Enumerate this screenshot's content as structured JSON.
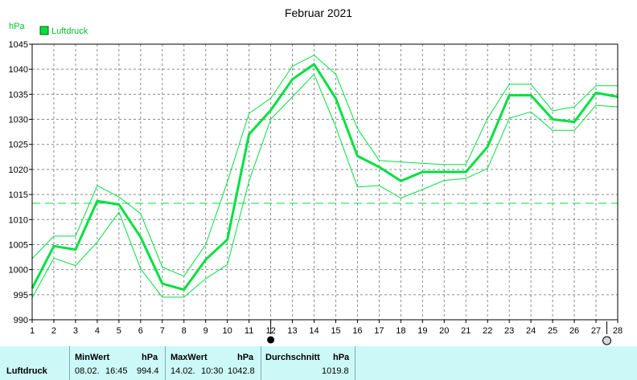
{
  "chart_data": {
    "type": "line",
    "title": "Februar 2021",
    "unit": "hPa",
    "legend": "Luftdruck",
    "x": [
      1,
      2,
      3,
      4,
      5,
      6,
      7,
      8,
      9,
      10,
      11,
      12,
      13,
      14,
      15,
      16,
      17,
      18,
      19,
      20,
      21,
      22,
      23,
      24,
      25,
      26,
      27,
      28
    ],
    "xlim": [
      1,
      28
    ],
    "ylim": [
      990,
      1045
    ],
    "yticks": [
      990,
      995,
      1000,
      1005,
      1010,
      1015,
      1020,
      1025,
      1030,
      1035,
      1040,
      1045
    ],
    "grid": true,
    "series": [
      {
        "name": "Luftdruck",
        "role": "mean",
        "color": "#00e040",
        "values": [
          996.3,
          1004.7,
          1004.0,
          1013.7,
          1013.0,
          1006.5,
          997.2,
          996.0,
          1002.0,
          1006.0,
          1027.0,
          1031.8,
          1038.0,
          1041.0,
          1034.2,
          1022.7,
          1020.5,
          1017.7,
          1019.5,
          1019.5,
          1019.5,
          1024.5,
          1034.8,
          1034.8,
          1030.0,
          1029.5,
          1035.3,
          1034.5
        ]
      },
      {
        "role": "max",
        "color": "#00e040",
        "values": [
          1002.2,
          1006.7,
          1006.7,
          1016.8,
          1014.5,
          1011.2,
          1000.5,
          998.7,
          1005.0,
          1017.5,
          1031.2,
          1034.2,
          1040.6,
          1042.8,
          1039.0,
          1028.2,
          1021.8,
          1021.5,
          1021.2,
          1021.0,
          1021.0,
          1030.2,
          1037.0,
          1037.0,
          1031.7,
          1032.5,
          1036.7,
          1036.7
        ]
      },
      {
        "role": "min",
        "color": "#00e040",
        "values": [
          994.4,
          1002.3,
          1000.8,
          1005.5,
          1011.5,
          1000.2,
          994.5,
          994.5,
          998.2,
          1001.0,
          1017.7,
          1030.0,
          1034.5,
          1039.0,
          1028.5,
          1016.5,
          1016.8,
          1014.3,
          1016.0,
          1017.8,
          1018.2,
          1020.2,
          1030.2,
          1031.5,
          1027.8,
          1027.8,
          1032.8,
          1032.5
        ]
      }
    ],
    "reference_line": {
      "value": 1013.25,
      "style": "dashed",
      "color": "#00e040"
    },
    "markers": [
      {
        "x": 12,
        "symbol": "filled-circle"
      },
      {
        "x": 27.5,
        "symbol": "open-circle"
      }
    ]
  },
  "footer": {
    "row_label": "Luftdruck",
    "min": {
      "title": "MinWert",
      "unit": "hPa",
      "date": "08.02.",
      "time": "16:45",
      "value": "994.4"
    },
    "max": {
      "title": "MaxWert",
      "unit": "hPa",
      "date": "14.02.",
      "time": "10:30",
      "value": "1042.8"
    },
    "avg": {
      "title": "Durchschnitt",
      "unit": "hPa",
      "value": "1019.8"
    }
  },
  "colors": {
    "series": "#00e040",
    "footer_bg": "#ccf9f7",
    "grid": "#8c8c8c"
  }
}
